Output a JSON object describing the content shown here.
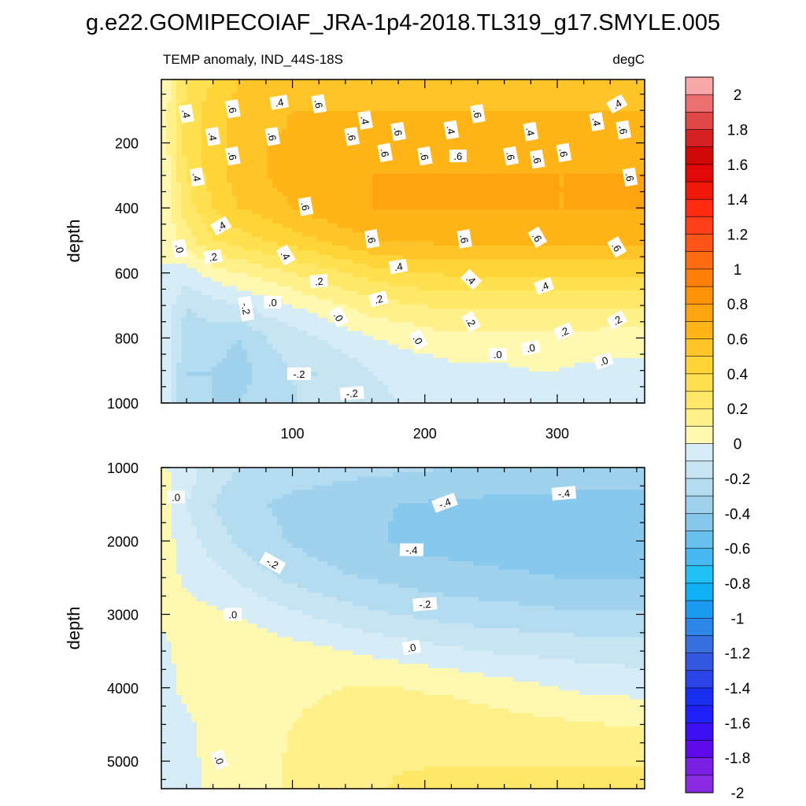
{
  "figure": {
    "title": "g.e22.GOMIPECOIAF_JRA-1p4-2018.TL319_g17.SMYLE.005"
  },
  "chart_data": [
    {
      "type": "heatmap",
      "panel": "upper",
      "title": "TEMP anomaly, IND_44S-18S",
      "units": "degC",
      "ylabel": "depth",
      "xlabel": "",
      "xlim": [
        1,
        366
      ],
      "ylim": [
        1000,
        5
      ],
      "xticks": [
        100,
        200,
        300
      ],
      "yticks": [
        200,
        400,
        600,
        800,
        1000
      ],
      "x": [
        1,
        20,
        40,
        60,
        80,
        100,
        120,
        140,
        160,
        180,
        200,
        220,
        240,
        260,
        280,
        300,
        320,
        340,
        366
      ],
      "depth": [
        5,
        100,
        200,
        300,
        400,
        500,
        600,
        700,
        800,
        900,
        1000
      ],
      "values": [
        [
          0.0,
          0.3,
          0.4,
          0.5,
          0.5,
          0.5,
          0.5,
          0.5,
          0.5,
          0.5,
          0.5,
          0.5,
          0.5,
          0.5,
          0.5,
          0.5,
          0.5,
          0.5,
          0.5
        ],
        [
          0.0,
          0.35,
          0.45,
          0.55,
          0.55,
          0.6,
          0.6,
          0.6,
          0.6,
          0.6,
          0.6,
          0.6,
          0.6,
          0.6,
          0.6,
          0.6,
          0.6,
          0.6,
          0.6
        ],
        [
          0.0,
          0.35,
          0.45,
          0.55,
          0.6,
          0.62,
          0.65,
          0.65,
          0.65,
          0.65,
          0.65,
          0.65,
          0.65,
          0.65,
          0.65,
          0.65,
          0.65,
          0.65,
          0.65
        ],
        [
          0.0,
          0.3,
          0.45,
          0.55,
          0.6,
          0.65,
          0.68,
          0.7,
          0.7,
          0.7,
          0.7,
          0.7,
          0.7,
          0.7,
          0.7,
          0.7,
          0.7,
          0.7,
          0.7
        ],
        [
          0.0,
          0.25,
          0.4,
          0.5,
          0.55,
          0.6,
          0.65,
          0.68,
          0.7,
          0.7,
          0.7,
          0.7,
          0.7,
          0.7,
          0.7,
          0.7,
          0.7,
          0.7,
          0.7
        ],
        [
          0.0,
          0.15,
          0.3,
          0.35,
          0.4,
          0.45,
          0.5,
          0.55,
          0.6,
          0.62,
          0.62,
          0.62,
          0.62,
          0.62,
          0.62,
          0.62,
          0.62,
          0.62,
          0.62
        ],
        [
          0.0,
          -0.05,
          0.05,
          0.1,
          0.15,
          0.2,
          0.25,
          0.3,
          0.35,
          0.38,
          0.4,
          0.42,
          0.42,
          0.42,
          0.42,
          0.42,
          0.42,
          0.42,
          0.42
        ],
        [
          0.0,
          -0.2,
          -0.15,
          -0.1,
          -0.05,
          0.0,
          0.05,
          0.1,
          0.15,
          0.18,
          0.2,
          0.22,
          0.22,
          0.22,
          0.22,
          0.22,
          0.22,
          0.22,
          0.22
        ],
        [
          0.0,
          -0.25,
          -0.25,
          -0.3,
          -0.2,
          -0.15,
          -0.1,
          -0.05,
          0.0,
          0.02,
          0.05,
          0.07,
          0.08,
          0.08,
          0.08,
          0.08,
          0.06,
          0.05,
          0.05
        ],
        [
          0.0,
          -0.3,
          -0.3,
          -0.35,
          -0.25,
          -0.2,
          -0.2,
          -0.15,
          -0.1,
          -0.05,
          -0.05,
          -0.03,
          -0.02,
          -0.02,
          0.0,
          0.0,
          -0.02,
          -0.03,
          -0.03
        ],
        [
          0.0,
          -0.3,
          -0.3,
          -0.3,
          -0.25,
          -0.2,
          -0.2,
          -0.2,
          -0.15,
          -0.1,
          -0.08,
          -0.06,
          -0.05,
          -0.05,
          -0.05,
          -0.05,
          -0.05,
          -0.05,
          -0.05
        ]
      ],
      "contour_labels": [
        {
          "x": 20,
          "depth": 110,
          "text": ".4",
          "rot": 80
        },
        {
          "x": 55,
          "depth": 95,
          "text": ".6",
          "rot": 80
        },
        {
          "x": 90,
          "depth": 75,
          "text": ".4",
          "rot": -10
        },
        {
          "x": 120,
          "depth": 80,
          "text": ".6",
          "rot": 80
        },
        {
          "x": 155,
          "depth": 130,
          "text": ".4",
          "rot": 80
        },
        {
          "x": 240,
          "depth": 110,
          "text": ".6",
          "rot": 80
        },
        {
          "x": 330,
          "depth": 135,
          "text": ".4",
          "rot": 80
        },
        {
          "x": 345,
          "depth": 80,
          "text": ".4",
          "rot": -30
        },
        {
          "x": 40,
          "depth": 180,
          "text": ".4",
          "rot": 80
        },
        {
          "x": 85,
          "depth": 180,
          "text": ".6",
          "rot": 80
        },
        {
          "x": 145,
          "depth": 180,
          "text": ".6",
          "rot": 80
        },
        {
          "x": 180,
          "depth": 165,
          "text": ".6",
          "rot": 80
        },
        {
          "x": 220,
          "depth": 160,
          "text": ".4",
          "rot": 80
        },
        {
          "x": 280,
          "depth": 165,
          "text": ".4",
          "rot": 80
        },
        {
          "x": 350,
          "depth": 160,
          "text": ".6",
          "rot": 80
        },
        {
          "x": 55,
          "depth": 240,
          "text": ".6",
          "rot": 80
        },
        {
          "x": 170,
          "depth": 230,
          "text": ".6",
          "rot": 80
        },
        {
          "x": 200,
          "depth": 240,
          "text": ".6",
          "rot": 80
        },
        {
          "x": 225,
          "depth": 240,
          "text": ".6",
          "rot": 0
        },
        {
          "x": 265,
          "depth": 240,
          "text": ".6",
          "rot": 80
        },
        {
          "x": 285,
          "depth": 250,
          "text": ".6",
          "rot": 80
        },
        {
          "x": 305,
          "depth": 230,
          "text": ".6",
          "rot": 80
        },
        {
          "x": 28,
          "depth": 305,
          "text": ".4",
          "rot": 80
        },
        {
          "x": 355,
          "depth": 305,
          "text": ".6",
          "rot": 80
        },
        {
          "x": 110,
          "depth": 395,
          "text": ".6",
          "rot": 80
        },
        {
          "x": 46,
          "depth": 455,
          "text": ".4",
          "rot": -30
        },
        {
          "x": 160,
          "depth": 495,
          "text": ".6",
          "rot": 80
        },
        {
          "x": 230,
          "depth": 495,
          "text": ".6",
          "rot": 80
        },
        {
          "x": 285,
          "depth": 490,
          "text": ".6",
          "rot": 60
        },
        {
          "x": 345,
          "depth": 520,
          "text": ".6",
          "rot": 60
        },
        {
          "x": 15,
          "depth": 525,
          "text": ".0",
          "rot": 80
        },
        {
          "x": 40,
          "depth": 550,
          "text": ".2",
          "rot": -10
        },
        {
          "x": 95,
          "depth": 545,
          "text": ".4",
          "rot": 60
        },
        {
          "x": 180,
          "depth": 580,
          "text": ".4",
          "rot": -10
        },
        {
          "x": 120,
          "depth": 625,
          "text": ".2",
          "rot": -5
        },
        {
          "x": 235,
          "depth": 620,
          "text": ".4",
          "rot": 45
        },
        {
          "x": 290,
          "depth": 640,
          "text": ".4",
          "rot": -20
        },
        {
          "x": 65,
          "depth": 710,
          "text": "-.2",
          "rot": 80
        },
        {
          "x": 85,
          "depth": 690,
          "text": ".0",
          "rot": 0
        },
        {
          "x": 165,
          "depth": 680,
          "text": ".2",
          "rot": -15
        },
        {
          "x": 135,
          "depth": 735,
          "text": ".0",
          "rot": 60
        },
        {
          "x": 235,
          "depth": 750,
          "text": ".2",
          "rot": 60
        },
        {
          "x": 305,
          "depth": 780,
          "text": ".2",
          "rot": -25
        },
        {
          "x": 345,
          "depth": 745,
          "text": ".2",
          "rot": -30
        },
        {
          "x": 195,
          "depth": 805,
          "text": ".0",
          "rot": 60
        },
        {
          "x": 255,
          "depth": 850,
          "text": ".0",
          "rot": 0
        },
        {
          "x": 280,
          "depth": 830,
          "text": ".0",
          "rot": -10
        },
        {
          "x": 335,
          "depth": 870,
          "text": ".0",
          "rot": -20
        },
        {
          "x": 105,
          "depth": 910,
          "text": "-.2",
          "rot": 0
        },
        {
          "x": 145,
          "depth": 970,
          "text": "-.2",
          "rot": -5
        }
      ]
    },
    {
      "type": "heatmap",
      "panel": "lower",
      "title": "",
      "ylabel": "depth",
      "xlabel": "",
      "xlim": [
        1,
        366
      ],
      "ylim": [
        5375,
        1000
      ],
      "xticks": [
        100,
        200,
        300
      ],
      "yticks": [
        1000,
        2000,
        3000,
        4000,
        5000
      ],
      "x": [
        1,
        20,
        40,
        60,
        80,
        100,
        120,
        140,
        160,
        180,
        200,
        220,
        240,
        260,
        280,
        300,
        320,
        340,
        366
      ],
      "depth": [
        1000,
        1500,
        2000,
        2500,
        3000,
        3500,
        4000,
        4500,
        5000,
        5375
      ],
      "values": [
        [
          0.02,
          -0.05,
          -0.15,
          -0.2,
          -0.22,
          -0.24,
          -0.25,
          -0.26,
          -0.27,
          -0.28,
          -0.29,
          -0.3,
          -0.31,
          -0.32,
          -0.32,
          -0.32,
          -0.32,
          -0.32,
          -0.32
        ],
        [
          0.05,
          -0.1,
          -0.2,
          -0.26,
          -0.3,
          -0.33,
          -0.35,
          -0.37,
          -0.39,
          -0.4,
          -0.41,
          -0.42,
          -0.42,
          -0.43,
          -0.43,
          -0.44,
          -0.44,
          -0.44,
          -0.44
        ],
        [
          0.05,
          -0.05,
          -0.15,
          -0.22,
          -0.27,
          -0.31,
          -0.34,
          -0.37,
          -0.39,
          -0.41,
          -0.43,
          -0.44,
          -0.45,
          -0.46,
          -0.47,
          -0.48,
          -0.5,
          -0.5,
          -0.5
        ],
        [
          0.05,
          -0.02,
          -0.06,
          -0.12,
          -0.18,
          -0.23,
          -0.26,
          -0.29,
          -0.31,
          -0.33,
          -0.35,
          -0.36,
          -0.37,
          -0.38,
          -0.39,
          -0.4,
          -0.4,
          -0.4,
          -0.4
        ],
        [
          0.02,
          0.03,
          0.02,
          0.0,
          -0.04,
          -0.08,
          -0.12,
          -0.15,
          -0.18,
          -0.2,
          -0.22,
          -0.24,
          -0.25,
          -0.26,
          -0.27,
          -0.28,
          -0.28,
          -0.28,
          -0.28
        ],
        [
          -0.03,
          0.04,
          0.05,
          0.05,
          0.05,
          0.04,
          0.02,
          0.0,
          -0.02,
          -0.04,
          -0.06,
          -0.08,
          -0.1,
          -0.11,
          -0.12,
          -0.13,
          -0.14,
          -0.14,
          -0.15
        ],
        [
          -0.05,
          0.03,
          0.05,
          0.06,
          0.07,
          0.08,
          0.09,
          0.1,
          0.1,
          0.1,
          0.09,
          0.08,
          0.06,
          0.04,
          0.02,
          0.0,
          -0.02,
          -0.03,
          -0.04
        ],
        [
          -0.05,
          -0.02,
          0.04,
          0.06,
          0.08,
          0.1,
          0.12,
          0.14,
          0.15,
          0.16,
          0.16,
          0.16,
          0.15,
          0.14,
          0.13,
          0.12,
          0.11,
          0.1,
          0.1
        ],
        [
          -0.05,
          -0.03,
          0.03,
          0.06,
          0.08,
          0.11,
          0.14,
          0.16,
          0.18,
          0.19,
          0.19,
          0.19,
          0.19,
          0.19,
          0.19,
          0.19,
          0.19,
          0.19,
          0.19
        ],
        [
          -0.05,
          -0.03,
          0.02,
          0.05,
          0.08,
          0.11,
          0.14,
          0.16,
          0.19,
          0.21,
          0.23,
          0.24,
          0.25,
          0.25,
          0.25,
          0.25,
          0.25,
          0.25,
          0.25
        ]
      ],
      "contour_labels": [
        {
          "x": 12,
          "depth": 1400,
          "text": ".0",
          "rot": 0
        },
        {
          "x": 215,
          "depth": 1480,
          "text": "-.4",
          "rot": -20
        },
        {
          "x": 305,
          "depth": 1350,
          "text": "-.4",
          "rot": -5
        },
        {
          "x": 190,
          "depth": 2120,
          "text": "-.4",
          "rot": 0
        },
        {
          "x": 85,
          "depth": 2300,
          "text": "-.2",
          "rot": 30
        },
        {
          "x": 200,
          "depth": 2860,
          "text": "-.2",
          "rot": -5
        },
        {
          "x": 55,
          "depth": 3000,
          "text": ".0",
          "rot": 0
        },
        {
          "x": 190,
          "depth": 3450,
          "text": ".0",
          "rot": -10
        },
        {
          "x": 45,
          "depth": 4980,
          "text": ".0",
          "rot": 70
        }
      ]
    }
  ],
  "colorbar": {
    "levels": [
      -2,
      -1.9,
      -1.8,
      -1.7,
      -1.6,
      -1.5,
      -1.4,
      -1.3,
      -1.2,
      -1.1,
      -1,
      -0.9,
      -0.8,
      -0.7,
      -0.6,
      -0.5,
      -0.4,
      -0.3,
      -0.2,
      -0.1,
      0,
      0.1,
      0.2,
      0.3,
      0.4,
      0.5,
      0.6,
      0.7,
      0.8,
      0.9,
      1,
      1.1,
      1.2,
      1.3,
      1.4,
      1.5,
      1.6,
      1.7,
      1.8,
      1.9,
      2
    ],
    "labels": [
      "2",
      "1.8",
      "1.6",
      "1.4",
      "1.2",
      "1",
      "0.8",
      "0.6",
      "0.4",
      "0.2",
      "0",
      "-0.2",
      "-0.4",
      "-0.6",
      "-0.8",
      "-1",
      "-1.2",
      "-1.4",
      "-1.6",
      "-1.8",
      "-2"
    ],
    "colors": [
      "#8a2be2",
      "#7b1fe0",
      "#5c0be8",
      "#3a10f0",
      "#2020f8",
      "#1a30f0",
      "#2a44e8",
      "#3458e0",
      "#3870e0",
      "#2b86e8",
      "#1c9cf0",
      "#10b0f4",
      "#20c0f4",
      "#48b8f0",
      "#68c0ee",
      "#88c8ec",
      "#a0d2ee",
      "#b4dcf0",
      "#c6e4f2",
      "#d6ecf6",
      "#fff8b0",
      "#fff08a",
      "#ffe868",
      "#ffe050",
      "#ffd438",
      "#ffc428",
      "#ffb418",
      "#ffa410",
      "#ff940a",
      "#ff8008",
      "#ff6c10",
      "#ff5418",
      "#ff4018",
      "#ff2a10",
      "#f01808",
      "#e00808",
      "#d00808",
      "#d42020",
      "#e04848",
      "#ec7070",
      "#f8a8a8"
    ]
  }
}
